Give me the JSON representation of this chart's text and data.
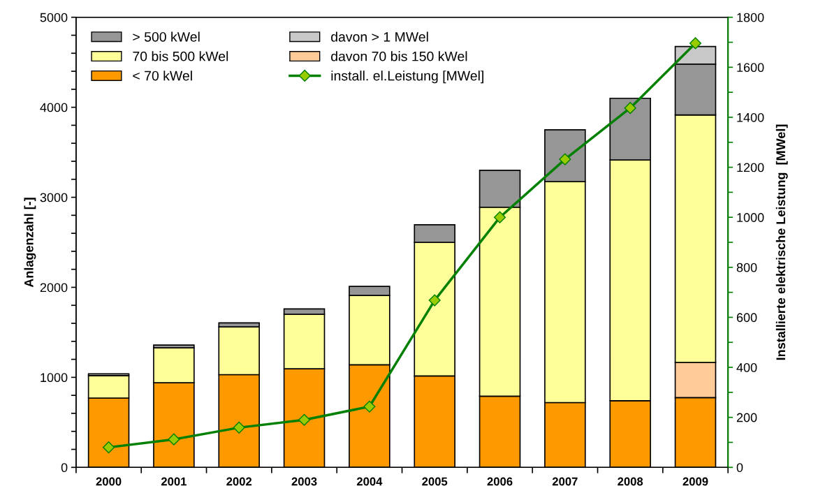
{
  "chart_data": {
    "type": "bar",
    "stacked": true,
    "categories": [
      "2000",
      "2001",
      "2002",
      "2003",
      "2004",
      "2005",
      "2006",
      "2007",
      "2008",
      "2009"
    ],
    "ylabel": "Anlagenzahl [-]",
    "y2label": "Installierte elektrische Leistung  [MWel]",
    "ylim": [
      0,
      5000
    ],
    "yticks": [
      0,
      {
        "value": 200,
        "label": null
      },
      {
        "value": 400,
        "label": null
      },
      {
        "value": 600,
        "label": null
      },
      {
        "value": 800,
        "label": null
      },
      1000,
      {
        "value": 1200,
        "label": null
      },
      {
        "value": 1400,
        "label": null
      },
      {
        "value": 1600,
        "label": null
      },
      {
        "value": 1800,
        "label": null
      },
      2000,
      {
        "value": 2200,
        "label": null
      },
      {
        "value": 2400,
        "label": null
      },
      {
        "value": 2600,
        "label": null
      },
      {
        "value": 2800,
        "label": null
      },
      3000,
      {
        "value": 3200,
        "label": null
      },
      {
        "value": 3400,
        "label": null
      },
      {
        "value": 3600,
        "label": null
      },
      {
        "value": 3800,
        "label": null
      },
      4000,
      {
        "value": 4200,
        "label": null
      },
      {
        "value": 4400,
        "label": null
      },
      {
        "value": 4600,
        "label": null
      },
      {
        "value": 4800,
        "label": null
      },
      5000
    ],
    "y2lim": [
      0,
      1800
    ],
    "y2ticks": [
      0,
      {
        "value": 100,
        "label": null
      },
      200,
      {
        "value": 300,
        "label": null
      },
      400,
      {
        "value": 500,
        "label": null
      },
      600,
      {
        "value": 700,
        "label": null
      },
      800,
      {
        "value": 900,
        "label": null
      },
      1000,
      {
        "value": 1100,
        "label": null
      },
      1200,
      {
        "value": 1300,
        "label": null
      },
      1400,
      {
        "value": 1500,
        "label": null
      },
      1600,
      {
        "value": 1700,
        "label": null
      },
      1800
    ],
    "grid": false,
    "legend": "top left",
    "marker": "diamond",
    "line_style": "solid",
    "series": [
      {
        "name": "< 70 kWel",
        "color": "#ff9900",
        "values": [
          770,
          940,
          1030,
          1095,
          1140,
          1015,
          790,
          720,
          740,
          775
        ]
      },
      {
        "name": "davon 70 bis 150 kWel",
        "color": "#ffcc99",
        "values": [
          null,
          null,
          null,
          null,
          null,
          null,
          null,
          null,
          null,
          390
        ]
      },
      {
        "name": "70 bis 500 kWel",
        "color": "#ffff99",
        "values": [
          250,
          388,
          530,
          605,
          770,
          1485,
          2100,
          2455,
          2675,
          2750
        ]
      },
      {
        "name": "> 500 kWel",
        "color": "#969696",
        "values": [
          20,
          31,
          45,
          60,
          100,
          195,
          410,
          575,
          685,
          565
        ]
      },
      {
        "name": "davon > 1 MWel",
        "color": "#c8c8c8",
        "values": [
          null,
          null,
          null,
          null,
          null,
          null,
          null,
          null,
          null,
          195
        ]
      },
      {
        "name": "install. el.Leistung [MWel]",
        "type": "line",
        "axis": "y2",
        "color": "#008000",
        "values": [
          80,
          112,
          159,
          190,
          243,
          668,
          1000,
          1232,
          1437,
          1696
        ]
      }
    ]
  }
}
